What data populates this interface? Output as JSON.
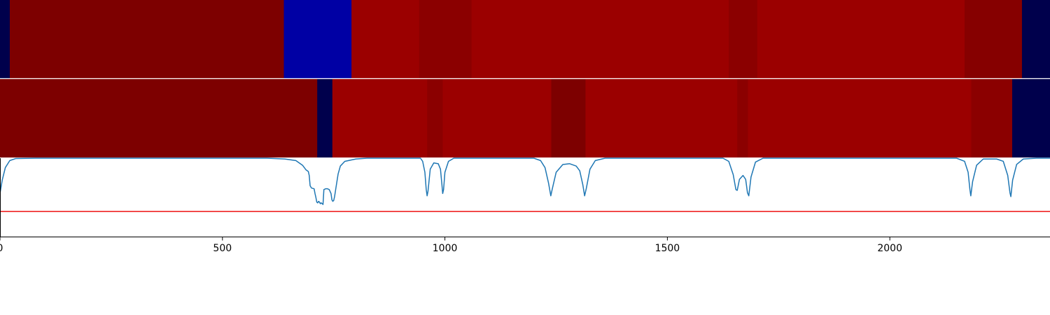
{
  "colors": {
    "trace": "#1f77b4",
    "threshold": "#ee1111",
    "axis": "#000000",
    "background": "#ffffff"
  },
  "chart_data": [
    {
      "type": "heatmap",
      "title": "",
      "xlim": [
        0,
        2360
      ],
      "colormap": "seismic",
      "segments": [
        {
          "start": 0,
          "end": 22,
          "color": "#00004c"
        },
        {
          "start": 22,
          "end": 638,
          "color": "#7d0000"
        },
        {
          "start": 638,
          "end": 790,
          "color": "#0000a4"
        },
        {
          "start": 790,
          "end": 942,
          "color": "#9b0000"
        },
        {
          "start": 942,
          "end": 1060,
          "color": "#8b0000"
        },
        {
          "start": 1060,
          "end": 1638,
          "color": "#9b0000"
        },
        {
          "start": 1638,
          "end": 1702,
          "color": "#8b0000"
        },
        {
          "start": 1702,
          "end": 2168,
          "color": "#9b0000"
        },
        {
          "start": 2168,
          "end": 2297,
          "color": "#860000"
        },
        {
          "start": 2297,
          "end": 2360,
          "color": "#00004c"
        }
      ]
    },
    {
      "type": "heatmap",
      "title": "",
      "xlim": [
        0,
        2360
      ],
      "colormap": "seismic",
      "segments": [
        {
          "start": 0,
          "end": 713,
          "color": "#7d0000"
        },
        {
          "start": 713,
          "end": 747,
          "color": "#00004c"
        },
        {
          "start": 747,
          "end": 960,
          "color": "#9b0000"
        },
        {
          "start": 960,
          "end": 995,
          "color": "#8b0000"
        },
        {
          "start": 995,
          "end": 1239,
          "color": "#9b0000"
        },
        {
          "start": 1239,
          "end": 1316,
          "color": "#7d0000"
        },
        {
          "start": 1316,
          "end": 1657,
          "color": "#9b0000"
        },
        {
          "start": 1657,
          "end": 1681,
          "color": "#8b0000"
        },
        {
          "start": 1681,
          "end": 2183,
          "color": "#9b0000"
        },
        {
          "start": 2183,
          "end": 2275,
          "color": "#8b0000"
        },
        {
          "start": 2275,
          "end": 2360,
          "color": "#00004c"
        }
      ]
    },
    {
      "type": "line",
      "title": "",
      "xlabel": "",
      "ylabel": "",
      "xlim": [
        0,
        2360
      ],
      "ylim": [
        0,
        1
      ],
      "xticks": [
        0,
        500,
        1000,
        1500,
        2000
      ],
      "grid": false,
      "threshold": 0.32,
      "series": [
        {
          "points": [
            [
              0,
              0.55
            ],
            [
              5,
              0.72
            ],
            [
              12,
              0.88
            ],
            [
              22,
              0.97
            ],
            [
              35,
              0.995
            ],
            [
              80,
              1.0
            ],
            [
              600,
              1.0
            ],
            [
              640,
              0.99
            ],
            [
              665,
              0.97
            ],
            [
              680,
              0.91
            ],
            [
              688,
              0.85
            ],
            [
              693,
              0.83
            ],
            [
              695,
              0.78
            ],
            [
              697,
              0.65
            ],
            [
              700,
              0.62
            ],
            [
              706,
              0.61
            ],
            [
              708,
              0.55
            ],
            [
              710,
              0.5
            ],
            [
              712,
              0.44
            ],
            [
              714,
              0.43
            ],
            [
              716,
              0.45
            ],
            [
              718,
              0.44
            ],
            [
              720,
              0.42
            ],
            [
              722,
              0.43
            ],
            [
              724,
              0.42
            ],
            [
              726,
              0.41
            ],
            [
              728,
              0.6
            ],
            [
              732,
              0.61
            ],
            [
              736,
              0.61
            ],
            [
              740,
              0.6
            ],
            [
              744,
              0.55
            ],
            [
              746,
              0.47
            ],
            [
              748,
              0.45
            ],
            [
              750,
              0.46
            ],
            [
              752,
              0.51
            ],
            [
              755,
              0.62
            ],
            [
              760,
              0.8
            ],
            [
              765,
              0.9
            ],
            [
              775,
              0.96
            ],
            [
              800,
              0.99
            ],
            [
              825,
              1.0
            ],
            [
              945,
              1.0
            ],
            [
              950,
              0.96
            ],
            [
              955,
              0.82
            ],
            [
              958,
              0.6
            ],
            [
              960,
              0.52
            ],
            [
              962,
              0.58
            ],
            [
              967,
              0.86
            ],
            [
              975,
              0.94
            ],
            [
              985,
              0.93
            ],
            [
              990,
              0.86
            ],
            [
              993,
              0.68
            ],
            [
              995,
              0.55
            ],
            [
              997,
              0.6
            ],
            [
              1000,
              0.82
            ],
            [
              1008,
              0.96
            ],
            [
              1020,
              1.0
            ],
            [
              1200,
              1.0
            ],
            [
              1215,
              0.97
            ],
            [
              1225,
              0.88
            ],
            [
              1233,
              0.68
            ],
            [
              1238,
              0.52
            ],
            [
              1241,
              0.6
            ],
            [
              1250,
              0.82
            ],
            [
              1265,
              0.92
            ],
            [
              1280,
              0.93
            ],
            [
              1295,
              0.9
            ],
            [
              1303,
              0.84
            ],
            [
              1310,
              0.66
            ],
            [
              1314,
              0.52
            ],
            [
              1318,
              0.62
            ],
            [
              1326,
              0.86
            ],
            [
              1338,
              0.97
            ],
            [
              1360,
              1.0
            ],
            [
              1625,
              1.0
            ],
            [
              1638,
              0.96
            ],
            [
              1648,
              0.79
            ],
            [
              1654,
              0.6
            ],
            [
              1657,
              0.59
            ],
            [
              1662,
              0.73
            ],
            [
              1670,
              0.78
            ],
            [
              1676,
              0.73
            ],
            [
              1680,
              0.56
            ],
            [
              1683,
              0.52
            ],
            [
              1688,
              0.76
            ],
            [
              1698,
              0.95
            ],
            [
              1715,
              1.0
            ],
            [
              2150,
              1.0
            ],
            [
              2168,
              0.96
            ],
            [
              2176,
              0.82
            ],
            [
              2180,
              0.6
            ],
            [
              2182,
              0.52
            ],
            [
              2186,
              0.7
            ],
            [
              2195,
              0.91
            ],
            [
              2210,
              0.99
            ],
            [
              2240,
              0.99
            ],
            [
              2255,
              0.96
            ],
            [
              2265,
              0.78
            ],
            [
              2270,
              0.56
            ],
            [
              2272,
              0.51
            ],
            [
              2276,
              0.72
            ],
            [
              2285,
              0.92
            ],
            [
              2300,
              0.99
            ],
            [
              2330,
              1.0
            ],
            [
              2360,
              1.0
            ]
          ]
        }
      ]
    }
  ]
}
